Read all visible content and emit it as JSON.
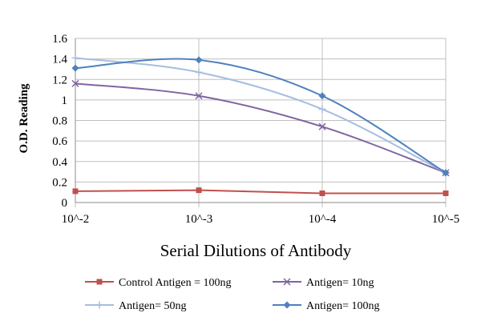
{
  "chart_data": {
    "type": "line",
    "title": "",
    "xlabel": "Serial Dilutions  of Antibody",
    "ylabel": "O.D. Reading",
    "categories": [
      "10^-2",
      "10^-3",
      "10^-4",
      "10^-5"
    ],
    "ylim": [
      0,
      1.6
    ],
    "yticks": [
      "0",
      "0.2",
      "0.4",
      "0.6",
      "0.8",
      "1",
      "1.2",
      "1.4",
      "1.6"
    ],
    "grid": true,
    "legend_position": "bottom",
    "series": [
      {
        "name": "Control Antigen = 100ng",
        "values": [
          0.11,
          0.12,
          0.09,
          0.09
        ],
        "color": "#c0504d",
        "marker": "square",
        "smooth": false
      },
      {
        "name": "Antigen= 10ng",
        "values": [
          1.16,
          1.04,
          0.74,
          0.29
        ],
        "color": "#8064a2",
        "marker": "x",
        "smooth": true
      },
      {
        "name": "Antigen= 50ng",
        "values": [
          1.41,
          1.27,
          0.91,
          0.29
        ],
        "color": "#a5bee0",
        "marker": "plus",
        "smooth": true
      },
      {
        "name": "Antigen= 100ng",
        "values": [
          1.31,
          1.39,
          1.04,
          0.29
        ],
        "color": "#4f81bd",
        "marker": "diamond",
        "smooth": true
      }
    ]
  }
}
